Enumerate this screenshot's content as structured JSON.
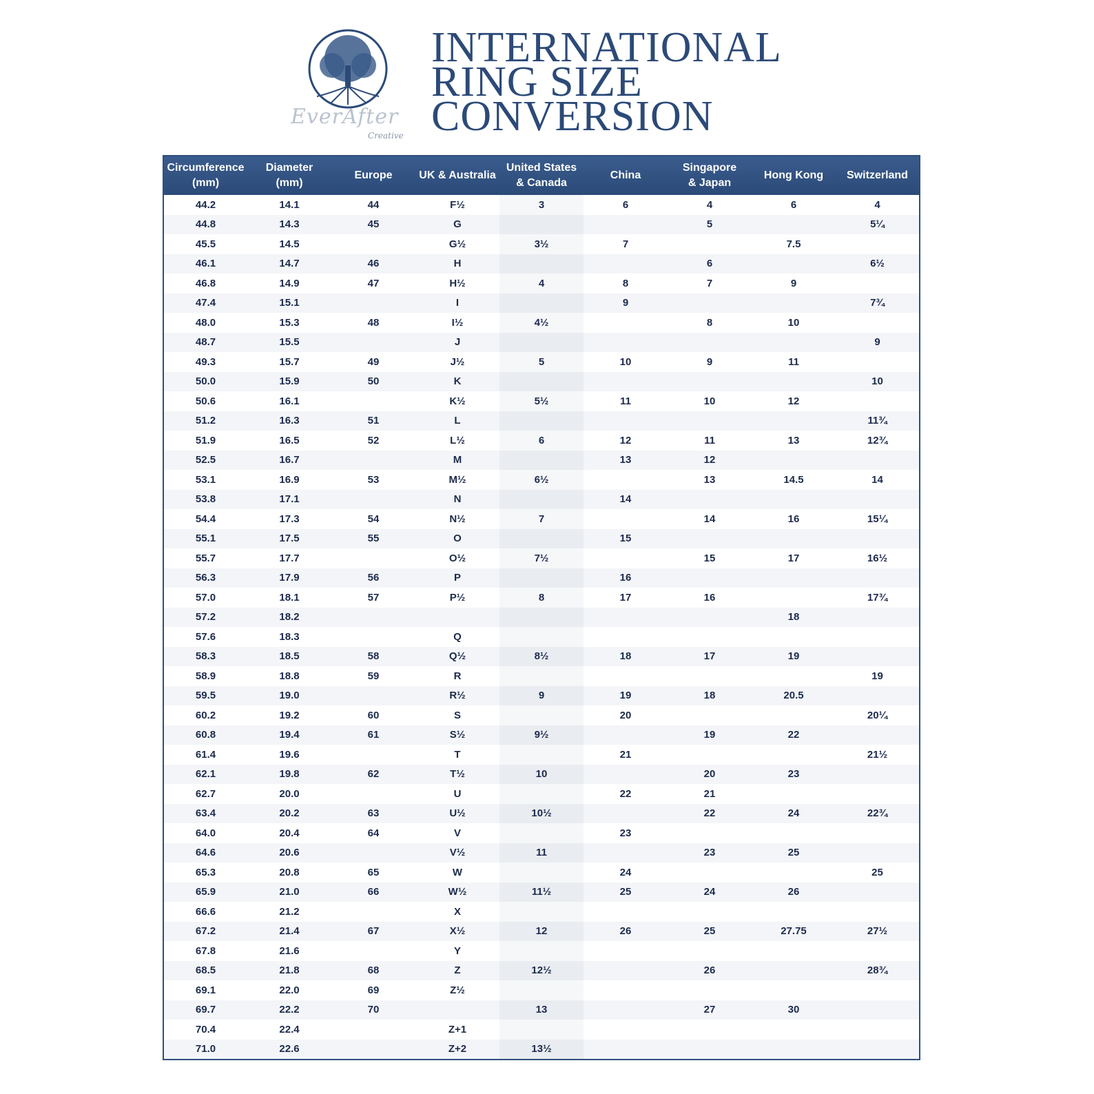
{
  "logo": {
    "brand": "EverAfter",
    "sub": "Creative"
  },
  "title": [
    "INTERNATIONAL",
    "RING SIZE",
    "CONVERSION"
  ],
  "colors": {
    "header_bg": "#2f4f7f",
    "text": "#1c2a4d",
    "title": "#2c4a78"
  },
  "headers": [
    [
      "Circumference",
      "(mm)"
    ],
    [
      "Diameter",
      "(mm)"
    ],
    [
      "Europe",
      ""
    ],
    [
      "UK & Australia",
      ""
    ],
    [
      "United States",
      "& Canada"
    ],
    [
      "China",
      ""
    ],
    [
      "Singapore",
      "& Japan"
    ],
    [
      "Hong Kong",
      ""
    ],
    [
      "Switzerland",
      ""
    ]
  ],
  "rows": [
    [
      "44.2",
      "14.1",
      "44",
      "F½",
      "3",
      "6",
      "4",
      "6",
      "4"
    ],
    [
      "44.8",
      "14.3",
      "45",
      "G",
      "",
      "",
      "5",
      "",
      "5¼"
    ],
    [
      "45.5",
      "14.5",
      "",
      "G½",
      "3½",
      "7",
      "",
      "7.5",
      ""
    ],
    [
      "46.1",
      "14.7",
      "46",
      "H",
      "",
      "",
      "6",
      "",
      "6½"
    ],
    [
      "46.8",
      "14.9",
      "47",
      "H½",
      "4",
      "8",
      "7",
      "9",
      ""
    ],
    [
      "47.4",
      "15.1",
      "",
      "I",
      "",
      "9",
      "",
      "",
      "7¾"
    ],
    [
      "48.0",
      "15.3",
      "48",
      "I½",
      "4½",
      "",
      "8",
      "10",
      ""
    ],
    [
      "48.7",
      "15.5",
      "",
      "J",
      "",
      "",
      "",
      "",
      "9"
    ],
    [
      "49.3",
      "15.7",
      "49",
      "J½",
      "5",
      "10",
      "9",
      "11",
      ""
    ],
    [
      "50.0",
      "15.9",
      "50",
      "K",
      "",
      "",
      "",
      "",
      "10"
    ],
    [
      "50.6",
      "16.1",
      "",
      "K½",
      "5½",
      "11",
      "10",
      "12",
      ""
    ],
    [
      "51.2",
      "16.3",
      "51",
      "L",
      "",
      "",
      "",
      "",
      "11¾"
    ],
    [
      "51.9",
      "16.5",
      "52",
      "L½",
      "6",
      "12",
      "11",
      "13",
      "12¾"
    ],
    [
      "52.5",
      "16.7",
      "",
      "M",
      "",
      "13",
      "12",
      "",
      ""
    ],
    [
      "53.1",
      "16.9",
      "53",
      "M½",
      "6½",
      "",
      "13",
      "14.5",
      "14"
    ],
    [
      "53.8",
      "17.1",
      "",
      "N",
      "",
      "14",
      "",
      "",
      ""
    ],
    [
      "54.4",
      "17.3",
      "54",
      "N½",
      "7",
      "",
      "14",
      "16",
      "15¼"
    ],
    [
      "55.1",
      "17.5",
      "55",
      "O",
      "",
      "15",
      "",
      "",
      ""
    ],
    [
      "55.7",
      "17.7",
      "",
      "O½",
      "7½",
      "",
      "15",
      "17",
      "16½"
    ],
    [
      "56.3",
      "17.9",
      "56",
      "P",
      "",
      "16",
      "",
      "",
      ""
    ],
    [
      "57.0",
      "18.1",
      "57",
      "P½",
      "8",
      "17",
      "16",
      "",
      "17¾"
    ],
    [
      "57.2",
      "18.2",
      "",
      "",
      "",
      "",
      "",
      "18",
      ""
    ],
    [
      "57.6",
      "18.3",
      "",
      "Q",
      "",
      "",
      "",
      "",
      ""
    ],
    [
      "58.3",
      "18.5",
      "58",
      "Q½",
      "8½",
      "18",
      "17",
      "19",
      ""
    ],
    [
      "58.9",
      "18.8",
      "59",
      "R",
      "",
      "",
      "",
      "",
      "19"
    ],
    [
      "59.5",
      "19.0",
      "",
      "R½",
      "9",
      "19",
      "18",
      "20.5",
      ""
    ],
    [
      "60.2",
      "19.2",
      "60",
      "S",
      "",
      "20",
      "",
      "",
      "20¼"
    ],
    [
      "60.8",
      "19.4",
      "61",
      "S½",
      "9½",
      "",
      "19",
      "22",
      ""
    ],
    [
      "61.4",
      "19.6",
      "",
      "T",
      "",
      "21",
      "",
      "",
      "21½"
    ],
    [
      "62.1",
      "19.8",
      "62",
      "T½",
      "10",
      "",
      "20",
      "23",
      ""
    ],
    [
      "62.7",
      "20.0",
      "",
      "U",
      "",
      "22",
      "21",
      "",
      ""
    ],
    [
      "63.4",
      "20.2",
      "63",
      "U½",
      "10½",
      "",
      "22",
      "24",
      "22¾"
    ],
    [
      "64.0",
      "20.4",
      "64",
      "V",
      "",
      "23",
      "",
      "",
      ""
    ],
    [
      "64.6",
      "20.6",
      "",
      "V½",
      "11",
      "",
      "23",
      "25",
      ""
    ],
    [
      "65.3",
      "20.8",
      "65",
      "W",
      "",
      "24",
      "",
      "",
      "25"
    ],
    [
      "65.9",
      "21.0",
      "66",
      "W½",
      "11½",
      "25",
      "24",
      "26",
      ""
    ],
    [
      "66.6",
      "21.2",
      "",
      "X",
      "",
      "",
      "",
      "",
      ""
    ],
    [
      "67.2",
      "21.4",
      "67",
      "X½",
      "12",
      "26",
      "25",
      "27.75",
      "27½"
    ],
    [
      "67.8",
      "21.6",
      "",
      "Y",
      "",
      "",
      "",
      "",
      ""
    ],
    [
      "68.5",
      "21.8",
      "68",
      "Z",
      "12½",
      "",
      "26",
      "",
      "28¾"
    ],
    [
      "69.1",
      "22.0",
      "69",
      "Z½",
      "",
      "",
      "",
      "",
      ""
    ],
    [
      "69.7",
      "22.2",
      "70",
      "",
      "13",
      "",
      "27",
      "30",
      ""
    ],
    [
      "70.4",
      "22.4",
      "",
      "Z+1",
      "",
      "",
      "",
      "",
      ""
    ],
    [
      "71.0",
      "22.6",
      "",
      "Z+2",
      "13½",
      "",
      "",
      "",
      ""
    ]
  ]
}
